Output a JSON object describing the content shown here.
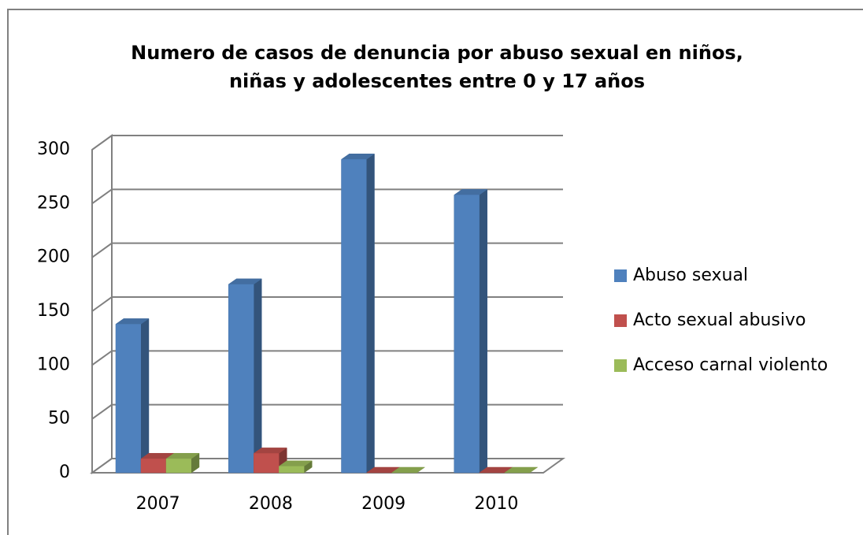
{
  "chart_data": {
    "type": "bar3d",
    "title": [
      "Numero de casos de denuncia por abuso sexual en niños,",
      "niñas y adolescentes entre 0 y 17 años"
    ],
    "categories": [
      "2007",
      "2008",
      "2009",
      "2010"
    ],
    "series": [
      {
        "name": "Abuso sexual",
        "color": "#4f81bd",
        "values": [
          138,
          175,
          291,
          258
        ]
      },
      {
        "name": "Acto sexual abusivo",
        "color": "#c0504d",
        "values": [
          13,
          18,
          0,
          0
        ]
      },
      {
        "name": "Acceso carnal violento",
        "color": "#9bbb59",
        "values": [
          13,
          6,
          0,
          0
        ]
      }
    ],
    "ylim": [
      0,
      300
    ],
    "yticks": [
      0,
      50,
      100,
      150,
      200,
      250,
      300
    ],
    "grid": true,
    "legend": "right"
  }
}
